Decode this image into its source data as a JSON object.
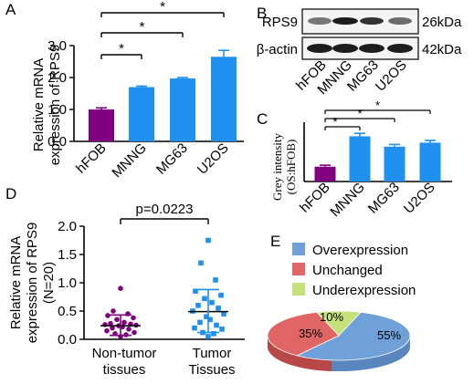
{
  "panels": {
    "A": "A",
    "B": "B",
    "C": "C",
    "D": "D",
    "E": "E"
  },
  "colors": {
    "purple": "#800080",
    "blue": "#1f8ff0",
    "overexpression": "#6fa0d8",
    "unchanged": "#e06666",
    "underexpression": "#c6e07a"
  },
  "chart_data": [
    {
      "id": "A",
      "type": "bar",
      "categories": [
        "hFOB",
        "MNNG",
        "MG63",
        "U2OS"
      ],
      "values": [
        1.0,
        1.7,
        1.97,
        2.65
      ],
      "errors": [
        0.05,
        0.03,
        0.03,
        0.2
      ],
      "ylabel": [
        "Relative mRNA",
        "expression of RPS9"
      ],
      "ylim": [
        0,
        3.0
      ],
      "yticks": [
        "0.0",
        "1.0",
        "2.0",
        "3.0"
      ],
      "significance": [
        "*",
        "*",
        "*"
      ]
    },
    {
      "id": "B",
      "type": "table",
      "rows": [
        {
          "label": "RPS9",
          "size": "26kDa"
        },
        {
          "label": "β-actin",
          "size": "42kDa"
        }
      ],
      "lanes": [
        "hFOB",
        "MNNG",
        "MG63",
        "U2OS"
      ]
    },
    {
      "id": "C",
      "type": "bar",
      "categories": [
        "hFOB",
        "MNNG",
        "MG63",
        "U2OS"
      ],
      "values": [
        1.0,
        3.05,
        2.35,
        2.62
      ],
      "errors": [
        0.1,
        0.2,
        0.15,
        0.15
      ],
      "ylabel": [
        "Grey intensity",
        "(OS:hFOB)"
      ],
      "ylim": [
        0,
        4
      ],
      "significance": [
        "*",
        "*",
        "*"
      ]
    },
    {
      "id": "D",
      "type": "scatter",
      "groups": [
        "Non-tumor\ntissues",
        "Tumor\nTissues"
      ],
      "group_labels": [
        [
          "Non-tumor",
          "tissues"
        ],
        [
          "Tumor",
          "Tissues"
        ]
      ],
      "series": [
        {
          "values": [
            0.9,
            0.5,
            0.45,
            0.42,
            0.38,
            0.35,
            0.3,
            0.28,
            0.27,
            0.26,
            0.25,
            0.24,
            0.22,
            0.2,
            0.18,
            0.15,
            0.12,
            0.1,
            0.08,
            0.05
          ],
          "mean": 0.24,
          "sd_low": 0.07,
          "sd_high": 0.43
        },
        {
          "values": [
            1.75,
            1.35,
            1.05,
            0.85,
            0.78,
            0.72,
            0.65,
            0.6,
            0.55,
            0.5,
            0.45,
            0.4,
            0.35,
            0.3,
            0.25,
            0.2,
            0.18,
            0.12,
            0.1,
            0.05
          ],
          "mean": 0.49,
          "sd_low": 0.12,
          "sd_high": 0.88
        }
      ],
      "ylabel": [
        "Relative mRNA",
        "expression of RPS9",
        "(N=20)"
      ],
      "ylim": [
        0,
        2.0
      ],
      "yticks": [
        "0.0",
        "0.5",
        "1.0",
        "1.5",
        "2.0"
      ],
      "annotation": "p=0.0223"
    },
    {
      "id": "E",
      "type": "pie",
      "labels": [
        "Overexpression",
        "Unchanged",
        "Underexpression"
      ],
      "values": [
        55,
        35,
        10
      ],
      "slice_labels": [
        "55%",
        "35%",
        "10%"
      ]
    }
  ]
}
